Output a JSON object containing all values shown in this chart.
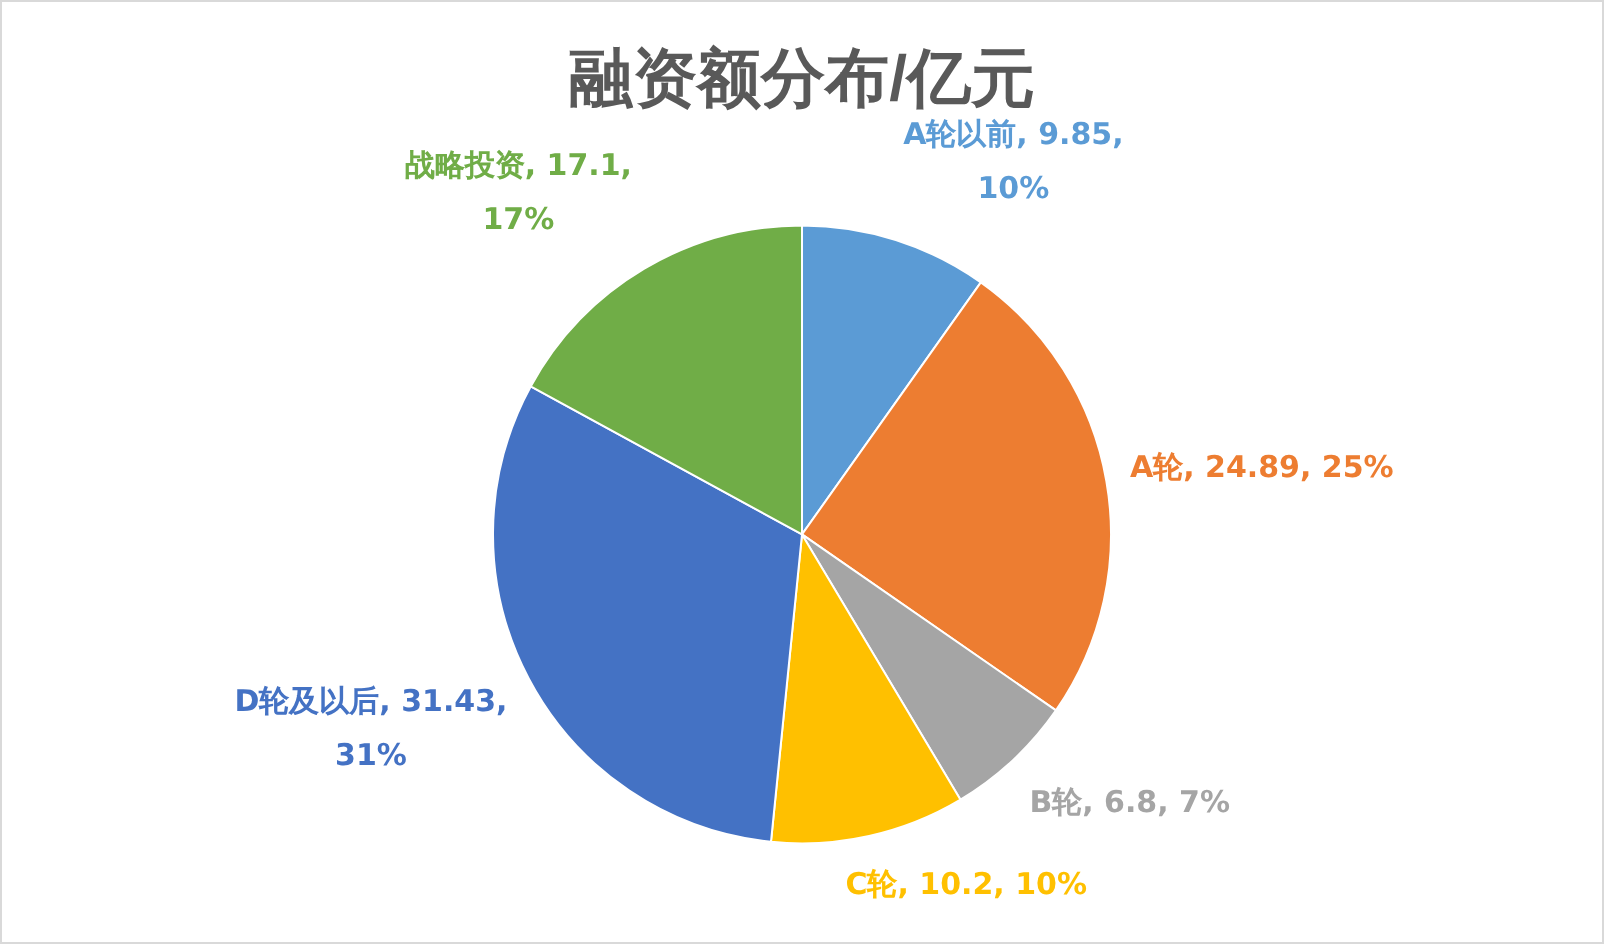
{
  "chart_data": {
    "type": "pie",
    "title": "融资额分布/亿元",
    "categories": [
      "A轮以前",
      "A轮",
      "B轮",
      "C轮",
      "D轮及以后",
      "战略投资"
    ],
    "values": [
      9.85,
      24.89,
      6.8,
      10.2,
      31.43,
      17.1
    ],
    "colors": [
      "#5b9bd5",
      "#ed7d31",
      "#a5a5a5",
      "#ffc000",
      "#4472c4",
      "#70ad47"
    ],
    "value_labels": [
      "9.85, 10%",
      "24.89, 25%",
      "6.8, 7%",
      "10.2, 10%",
      "31.43, 31%",
      "17.1, 17%"
    ],
    "legend": false
  }
}
